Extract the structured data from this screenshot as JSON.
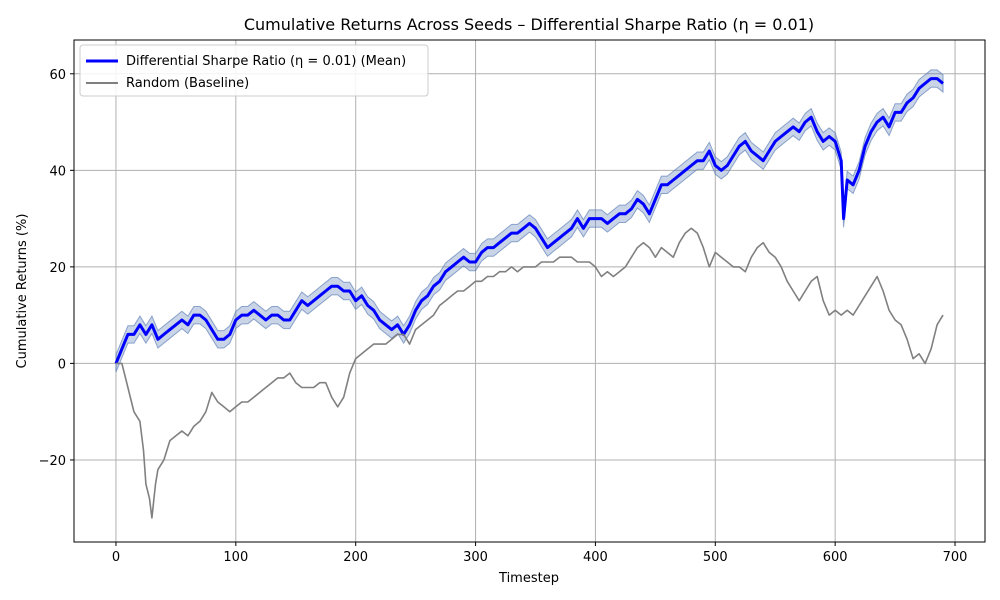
{
  "chart_data": {
    "type": "line",
    "title": "Cumulative Returns Across Seeds – Differential Sharpe Ratio (η = 0.01)",
    "xlabel": "Timestep",
    "ylabel": "Cumulative Returns (%)",
    "xlim": [
      -35,
      725
    ],
    "ylim": [
      -37,
      67
    ],
    "xticks": [
      0,
      100,
      200,
      300,
      400,
      500,
      600,
      700
    ],
    "yticks": [
      -20,
      0,
      20,
      40,
      60
    ],
    "grid": true,
    "legend_position": "top-left",
    "band_color": "#4c72b0",
    "series": [
      {
        "name": "Differential Sharpe Ratio (η = 0.01) (Mean)",
        "color": "#0000ff",
        "band_width": 1.8,
        "points": [
          [
            0,
            0
          ],
          [
            5,
            3
          ],
          [
            10,
            6
          ],
          [
            15,
            6
          ],
          [
            20,
            8
          ],
          [
            25,
            6
          ],
          [
            30,
            8
          ],
          [
            35,
            5
          ],
          [
            40,
            6
          ],
          [
            45,
            7
          ],
          [
            50,
            8
          ],
          [
            55,
            9
          ],
          [
            60,
            8
          ],
          [
            65,
            10
          ],
          [
            70,
            10
          ],
          [
            75,
            9
          ],
          [
            80,
            7
          ],
          [
            85,
            5
          ],
          [
            90,
            5
          ],
          [
            95,
            6
          ],
          [
            100,
            9
          ],
          [
            105,
            10
          ],
          [
            110,
            10
          ],
          [
            115,
            11
          ],
          [
            120,
            10
          ],
          [
            125,
            9
          ],
          [
            130,
            10
          ],
          [
            135,
            10
          ],
          [
            140,
            9
          ],
          [
            145,
            9
          ],
          [
            150,
            11
          ],
          [
            155,
            13
          ],
          [
            160,
            12
          ],
          [
            165,
            13
          ],
          [
            170,
            14
          ],
          [
            175,
            15
          ],
          [
            180,
            16
          ],
          [
            185,
            16
          ],
          [
            190,
            15
          ],
          [
            195,
            15
          ],
          [
            200,
            13
          ],
          [
            205,
            14
          ],
          [
            210,
            12
          ],
          [
            215,
            11
          ],
          [
            220,
            9
          ],
          [
            225,
            8
          ],
          [
            230,
            7
          ],
          [
            235,
            8
          ],
          [
            240,
            6
          ],
          [
            245,
            8
          ],
          [
            250,
            11
          ],
          [
            255,
            13
          ],
          [
            260,
            14
          ],
          [
            265,
            16
          ],
          [
            270,
            17
          ],
          [
            275,
            19
          ],
          [
            280,
            20
          ],
          [
            285,
            21
          ],
          [
            290,
            22
          ],
          [
            295,
            21
          ],
          [
            300,
            21
          ],
          [
            305,
            23
          ],
          [
            310,
            24
          ],
          [
            315,
            24
          ],
          [
            320,
            25
          ],
          [
            325,
            26
          ],
          [
            330,
            27
          ],
          [
            335,
            27
          ],
          [
            340,
            28
          ],
          [
            345,
            29
          ],
          [
            350,
            28
          ],
          [
            355,
            26
          ],
          [
            360,
            24
          ],
          [
            365,
            25
          ],
          [
            370,
            26
          ],
          [
            375,
            27
          ],
          [
            380,
            28
          ],
          [
            385,
            30
          ],
          [
            390,
            28
          ],
          [
            395,
            30
          ],
          [
            400,
            30
          ],
          [
            405,
            30
          ],
          [
            410,
            29
          ],
          [
            415,
            30
          ],
          [
            420,
            31
          ],
          [
            425,
            31
          ],
          [
            430,
            32
          ],
          [
            435,
            34
          ],
          [
            440,
            33
          ],
          [
            445,
            31
          ],
          [
            450,
            34
          ],
          [
            455,
            37
          ],
          [
            460,
            37
          ],
          [
            465,
            38
          ],
          [
            470,
            39
          ],
          [
            475,
            40
          ],
          [
            480,
            41
          ],
          [
            485,
            42
          ],
          [
            490,
            42
          ],
          [
            495,
            44
          ],
          [
            500,
            41
          ],
          [
            505,
            40
          ],
          [
            510,
            41
          ],
          [
            515,
            43
          ],
          [
            520,
            45
          ],
          [
            525,
            46
          ],
          [
            530,
            44
          ],
          [
            535,
            43
          ],
          [
            540,
            42
          ],
          [
            545,
            44
          ],
          [
            550,
            46
          ],
          [
            555,
            47
          ],
          [
            560,
            48
          ],
          [
            565,
            49
          ],
          [
            570,
            48
          ],
          [
            575,
            50
          ],
          [
            580,
            51
          ],
          [
            585,
            48
          ],
          [
            590,
            46
          ],
          [
            595,
            47
          ],
          [
            600,
            46
          ],
          [
            605,
            42
          ],
          [
            607,
            30
          ],
          [
            610,
            38
          ],
          [
            615,
            37
          ],
          [
            620,
            40
          ],
          [
            625,
            45
          ],
          [
            630,
            48
          ],
          [
            635,
            50
          ],
          [
            640,
            51
          ],
          [
            645,
            49
          ],
          [
            650,
            52
          ],
          [
            655,
            52
          ],
          [
            660,
            54
          ],
          [
            665,
            55
          ],
          [
            670,
            57
          ],
          [
            675,
            58
          ],
          [
            680,
            59
          ],
          [
            685,
            59
          ],
          [
            690,
            58
          ]
        ]
      },
      {
        "name": "Random (Baseline)",
        "color": "#808080",
        "points": [
          [
            0,
            0
          ],
          [
            5,
            0
          ],
          [
            10,
            -5
          ],
          [
            15,
            -10
          ],
          [
            20,
            -12
          ],
          [
            23,
            -18
          ],
          [
            25,
            -25
          ],
          [
            28,
            -28
          ],
          [
            30,
            -32
          ],
          [
            33,
            -25
          ],
          [
            35,
            -22
          ],
          [
            40,
            -20
          ],
          [
            45,
            -16
          ],
          [
            50,
            -15
          ],
          [
            55,
            -14
          ],
          [
            60,
            -15
          ],
          [
            65,
            -13
          ],
          [
            70,
            -12
          ],
          [
            75,
            -10
          ],
          [
            80,
            -6
          ],
          [
            85,
            -8
          ],
          [
            90,
            -9
          ],
          [
            95,
            -10
          ],
          [
            100,
            -9
          ],
          [
            105,
            -8
          ],
          [
            110,
            -8
          ],
          [
            115,
            -7
          ],
          [
            120,
            -6
          ],
          [
            125,
            -5
          ],
          [
            130,
            -4
          ],
          [
            135,
            -3
          ],
          [
            140,
            -3
          ],
          [
            145,
            -2
          ],
          [
            150,
            -4
          ],
          [
            155,
            -5
          ],
          [
            160,
            -5
          ],
          [
            165,
            -5
          ],
          [
            170,
            -4
          ],
          [
            175,
            -4
          ],
          [
            180,
            -7
          ],
          [
            185,
            -9
          ],
          [
            190,
            -7
          ],
          [
            195,
            -2
          ],
          [
            200,
            1
          ],
          [
            205,
            2
          ],
          [
            210,
            3
          ],
          [
            215,
            4
          ],
          [
            220,
            4
          ],
          [
            225,
            4
          ],
          [
            230,
            5
          ],
          [
            235,
            6
          ],
          [
            240,
            6
          ],
          [
            245,
            4
          ],
          [
            250,
            7
          ],
          [
            255,
            8
          ],
          [
            260,
            9
          ],
          [
            265,
            10
          ],
          [
            270,
            12
          ],
          [
            275,
            13
          ],
          [
            280,
            14
          ],
          [
            285,
            15
          ],
          [
            290,
            15
          ],
          [
            295,
            16
          ],
          [
            300,
            17
          ],
          [
            305,
            17
          ],
          [
            310,
            18
          ],
          [
            315,
            18
          ],
          [
            320,
            19
          ],
          [
            325,
            19
          ],
          [
            330,
            20
          ],
          [
            335,
            19
          ],
          [
            340,
            20
          ],
          [
            345,
            20
          ],
          [
            350,
            20
          ],
          [
            355,
            21
          ],
          [
            360,
            21
          ],
          [
            365,
            21
          ],
          [
            370,
            22
          ],
          [
            375,
            22
          ],
          [
            380,
            22
          ],
          [
            385,
            21
          ],
          [
            390,
            21
          ],
          [
            395,
            21
          ],
          [
            400,
            20
          ],
          [
            405,
            18
          ],
          [
            410,
            19
          ],
          [
            415,
            18
          ],
          [
            420,
            19
          ],
          [
            425,
            20
          ],
          [
            430,
            22
          ],
          [
            435,
            24
          ],
          [
            440,
            25
          ],
          [
            445,
            24
          ],
          [
            450,
            22
          ],
          [
            455,
            24
          ],
          [
            460,
            23
          ],
          [
            465,
            22
          ],
          [
            470,
            25
          ],
          [
            475,
            27
          ],
          [
            480,
            28
          ],
          [
            485,
            27
          ],
          [
            490,
            24
          ],
          [
            495,
            20
          ],
          [
            500,
            23
          ],
          [
            505,
            22
          ],
          [
            510,
            21
          ],
          [
            515,
            20
          ],
          [
            520,
            20
          ],
          [
            525,
            19
          ],
          [
            530,
            22
          ],
          [
            535,
            24
          ],
          [
            540,
            25
          ],
          [
            545,
            23
          ],
          [
            550,
            22
          ],
          [
            555,
            20
          ],
          [
            560,
            17
          ],
          [
            565,
            15
          ],
          [
            570,
            13
          ],
          [
            575,
            15
          ],
          [
            580,
            17
          ],
          [
            585,
            18
          ],
          [
            590,
            13
          ],
          [
            595,
            10
          ],
          [
            600,
            11
          ],
          [
            605,
            10
          ],
          [
            610,
            11
          ],
          [
            615,
            10
          ],
          [
            620,
            12
          ],
          [
            625,
            14
          ],
          [
            630,
            16
          ],
          [
            635,
            18
          ],
          [
            640,
            15
          ],
          [
            645,
            11
          ],
          [
            650,
            9
          ],
          [
            655,
            8
          ],
          [
            660,
            5
          ],
          [
            665,
            1
          ],
          [
            670,
            2
          ],
          [
            675,
            0
          ],
          [
            680,
            3
          ],
          [
            685,
            8
          ],
          [
            690,
            10
          ]
        ]
      }
    ]
  }
}
